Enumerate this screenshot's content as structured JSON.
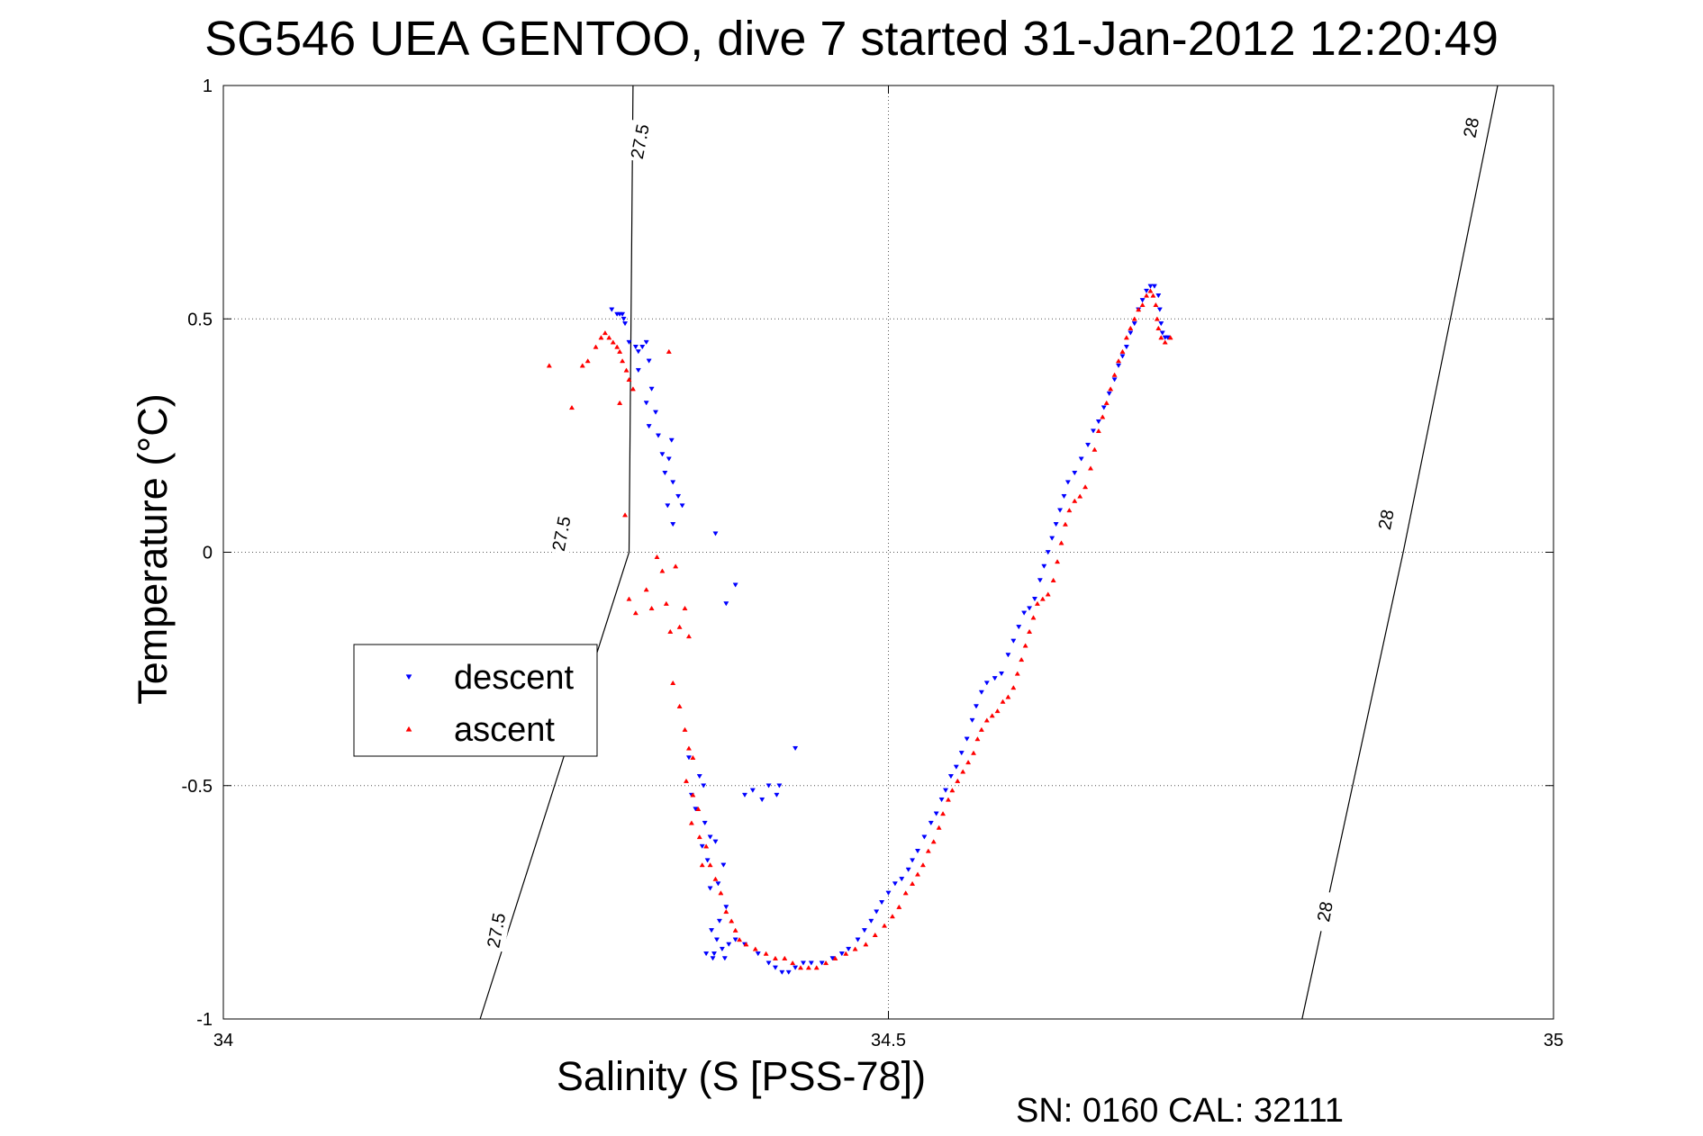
{
  "chart_data": {
    "type": "scatter",
    "title": "SG546 UEA GENTOO, dive 7 started 31-Jan-2012 12:20:49",
    "xlabel": "Salinity (S [PSS-78])",
    "ylabel": "Temperature (°C)",
    "xlim": [
      34,
      35
    ],
    "ylim": [
      -1,
      1
    ],
    "xticks": [
      "34",
      "34.5",
      "35"
    ],
    "yticks": [
      "-1",
      "-0.5",
      "0",
      "0.5",
      "1"
    ],
    "grid": true,
    "legend_position": "middle-left",
    "footer": "SN: 0160  CAL: 32111",
    "density_contours": [
      {
        "label": "27.5",
        "points": [
          [
            34.193,
            -1.0
          ],
          [
            34.305,
            0.0
          ],
          [
            34.308,
            1.0
          ]
        ]
      },
      {
        "label": "28",
        "points": [
          [
            34.811,
            -1.0
          ],
          [
            34.887,
            0.0
          ],
          [
            34.958,
            1.0
          ]
        ]
      }
    ],
    "contour_labels": [
      {
        "text": "27.5",
        "x": 34.205,
        "y": -0.81
      },
      {
        "text": "27.5",
        "x": 34.254,
        "y": 0.04
      },
      {
        "text": "27.5",
        "x": 34.313,
        "y": 0.88
      },
      {
        "text": "28",
        "x": 34.828,
        "y": -0.77
      },
      {
        "text": "28",
        "x": 34.874,
        "y": 0.07
      },
      {
        "text": "28",
        "x": 34.938,
        "y": 0.91
      }
    ],
    "series": [
      {
        "name": "descent",
        "color": "#0000ff",
        "marker": "triangle-down",
        "points": [
          [
            34.292,
            0.52
          ],
          [
            34.296,
            0.51
          ],
          [
            34.298,
            0.51
          ],
          [
            34.3,
            0.51
          ],
          [
            34.301,
            0.5
          ],
          [
            34.302,
            0.49
          ],
          [
            34.305,
            0.45
          ],
          [
            34.31,
            0.44
          ],
          [
            34.312,
            0.43
          ],
          [
            34.315,
            0.44
          ],
          [
            34.318,
            0.45
          ],
          [
            34.32,
            0.41
          ],
          [
            34.312,
            0.39
          ],
          [
            34.322,
            0.35
          ],
          [
            34.318,
            0.32
          ],
          [
            34.325,
            0.3
          ],
          [
            34.32,
            0.27
          ],
          [
            34.327,
            0.25
          ],
          [
            34.33,
            0.21
          ],
          [
            34.335,
            0.2
          ],
          [
            34.337,
            0.24
          ],
          [
            34.332,
            0.17
          ],
          [
            34.338,
            0.15
          ],
          [
            34.342,
            0.12
          ],
          [
            34.345,
            0.1
          ],
          [
            34.334,
            0.1
          ],
          [
            34.338,
            0.06
          ],
          [
            34.37,
            0.04
          ],
          [
            34.385,
            -0.07
          ],
          [
            34.378,
            -0.11
          ],
          [
            34.35,
            -0.44
          ],
          [
            34.358,
            -0.48
          ],
          [
            34.352,
            -0.52
          ],
          [
            34.361,
            -0.5
          ],
          [
            34.355,
            -0.55
          ],
          [
            34.362,
            -0.58
          ],
          [
            34.366,
            -0.61
          ],
          [
            34.36,
            -0.63
          ],
          [
            34.37,
            -0.62
          ],
          [
            34.364,
            -0.66
          ],
          [
            34.376,
            -0.67
          ],
          [
            34.372,
            -0.71
          ],
          [
            34.366,
            -0.72
          ],
          [
            34.378,
            -0.76
          ],
          [
            34.373,
            -0.79
          ],
          [
            34.367,
            -0.81
          ],
          [
            34.371,
            -0.83
          ],
          [
            34.375,
            -0.85
          ],
          [
            34.369,
            -0.86
          ],
          [
            34.363,
            -0.86
          ],
          [
            34.377,
            -0.87
          ],
          [
            34.368,
            -0.87
          ],
          [
            34.392,
            -0.52
          ],
          [
            34.398,
            -0.51
          ],
          [
            34.41,
            -0.5
          ],
          [
            34.405,
            -0.53
          ],
          [
            34.416,
            -0.52
          ],
          [
            34.418,
            -0.5
          ],
          [
            34.43,
            -0.42
          ],
          [
            34.38,
            -0.84
          ],
          [
            34.385,
            -0.83
          ],
          [
            34.392,
            -0.84
          ],
          [
            34.402,
            -0.86
          ],
          [
            34.41,
            -0.88
          ],
          [
            34.415,
            -0.89
          ],
          [
            34.42,
            -0.9
          ],
          [
            34.425,
            -0.9
          ],
          [
            34.43,
            -0.89
          ],
          [
            34.436,
            -0.88
          ],
          [
            34.442,
            -0.88
          ],
          [
            34.45,
            -0.88
          ],
          [
            34.458,
            -0.87
          ],
          [
            34.465,
            -0.86
          ],
          [
            34.47,
            -0.85
          ],
          [
            34.477,
            -0.83
          ],
          [
            34.482,
            -0.81
          ],
          [
            34.487,
            -0.79
          ],
          [
            34.491,
            -0.77
          ],
          [
            34.495,
            -0.75
          ],
          [
            34.5,
            -0.73
          ],
          [
            34.505,
            -0.71
          ],
          [
            34.51,
            -0.7
          ],
          [
            34.515,
            -0.68
          ],
          [
            34.518,
            -0.66
          ],
          [
            34.522,
            -0.64
          ],
          [
            34.527,
            -0.61
          ],
          [
            34.532,
            -0.58
          ],
          [
            34.536,
            -0.56
          ],
          [
            34.54,
            -0.53
          ],
          [
            34.543,
            -0.51
          ],
          [
            34.547,
            -0.48
          ],
          [
            34.551,
            -0.46
          ],
          [
            34.555,
            -0.43
          ],
          [
            34.559,
            -0.4
          ],
          [
            34.563,
            -0.36
          ],
          [
            34.566,
            -0.33
          ],
          [
            34.57,
            -0.3
          ],
          [
            34.574,
            -0.28
          ],
          [
            34.58,
            -0.27
          ],
          [
            34.585,
            -0.26
          ],
          [
            34.59,
            -0.22
          ],
          [
            34.594,
            -0.19
          ],
          [
            34.598,
            -0.16
          ],
          [
            34.602,
            -0.13
          ],
          [
            34.606,
            -0.12
          ],
          [
            34.61,
            -0.1
          ],
          [
            34.614,
            -0.06
          ],
          [
            34.617,
            -0.03
          ],
          [
            34.62,
            0.0
          ],
          [
            34.623,
            0.03
          ],
          [
            34.626,
            0.06
          ],
          [
            34.629,
            0.09
          ],
          [
            34.632,
            0.12
          ],
          [
            34.635,
            0.15
          ],
          [
            34.64,
            0.17
          ],
          [
            34.645,
            0.2
          ],
          [
            34.65,
            0.23
          ],
          [
            34.654,
            0.26
          ],
          [
            34.658,
            0.28
          ],
          [
            34.662,
            0.31
          ],
          [
            34.666,
            0.34
          ],
          [
            34.67,
            0.37
          ],
          [
            34.673,
            0.4
          ],
          [
            34.676,
            0.42
          ],
          [
            34.679,
            0.44
          ],
          [
            34.682,
            0.47
          ],
          [
            34.685,
            0.49
          ],
          [
            34.688,
            0.52
          ],
          [
            34.691,
            0.54
          ],
          [
            34.694,
            0.56
          ],
          [
            34.697,
            0.57
          ],
          [
            34.7,
            0.57
          ],
          [
            34.703,
            0.55
          ],
          [
            34.704,
            0.52
          ],
          [
            34.705,
            0.49
          ],
          [
            34.706,
            0.47
          ],
          [
            34.708,
            0.46
          ],
          [
            34.71,
            0.46
          ]
        ]
      },
      {
        "name": "ascent",
        "color": "#ff0000",
        "marker": "triangle-up",
        "points": [
          [
            34.245,
            0.4
          ],
          [
            34.262,
            0.31
          ],
          [
            34.27,
            0.4
          ],
          [
            34.274,
            0.41
          ],
          [
            34.28,
            0.44
          ],
          [
            34.284,
            0.46
          ],
          [
            34.287,
            0.47
          ],
          [
            34.29,
            0.46
          ],
          [
            34.293,
            0.45
          ],
          [
            34.296,
            0.44
          ],
          [
            34.298,
            0.43
          ],
          [
            34.3,
            0.41
          ],
          [
            34.303,
            0.39
          ],
          [
            34.305,
            0.37
          ],
          [
            34.308,
            0.35
          ],
          [
            34.298,
            0.32
          ],
          [
            34.335,
            0.43
          ],
          [
            34.302,
            0.08
          ],
          [
            34.305,
            -0.1
          ],
          [
            34.31,
            -0.13
          ],
          [
            34.318,
            -0.08
          ],
          [
            34.322,
            -0.12
          ],
          [
            34.326,
            -0.01
          ],
          [
            34.33,
            -0.04
          ],
          [
            34.333,
            -0.11
          ],
          [
            34.336,
            -0.17
          ],
          [
            34.34,
            -0.03
          ],
          [
            34.343,
            -0.16
          ],
          [
            34.347,
            -0.12
          ],
          [
            34.35,
            -0.18
          ],
          [
            34.338,
            -0.28
          ],
          [
            34.343,
            -0.33
          ],
          [
            34.347,
            -0.38
          ],
          [
            34.35,
            -0.42
          ],
          [
            34.353,
            -0.44
          ],
          [
            34.348,
            -0.49
          ],
          [
            34.353,
            -0.52
          ],
          [
            34.357,
            -0.55
          ],
          [
            34.352,
            -0.58
          ],
          [
            34.358,
            -0.61
          ],
          [
            34.363,
            -0.63
          ],
          [
            34.36,
            -0.67
          ],
          [
            34.366,
            -0.67
          ],
          [
            34.37,
            -0.7
          ],
          [
            34.374,
            -0.73
          ],
          [
            34.378,
            -0.77
          ],
          [
            34.382,
            -0.79
          ],
          [
            34.385,
            -0.81
          ],
          [
            34.388,
            -0.83
          ],
          [
            34.393,
            -0.84
          ],
          [
            34.4,
            -0.85
          ],
          [
            34.408,
            -0.86
          ],
          [
            34.415,
            -0.87
          ],
          [
            34.422,
            -0.87
          ],
          [
            34.428,
            -0.88
          ],
          [
            34.434,
            -0.89
          ],
          [
            34.44,
            -0.89
          ],
          [
            34.446,
            -0.89
          ],
          [
            34.453,
            -0.88
          ],
          [
            34.46,
            -0.87
          ],
          [
            34.468,
            -0.86
          ],
          [
            34.475,
            -0.85
          ],
          [
            34.483,
            -0.84
          ],
          [
            34.49,
            -0.82
          ],
          [
            34.497,
            -0.8
          ],
          [
            34.503,
            -0.78
          ],
          [
            34.508,
            -0.76
          ],
          [
            34.513,
            -0.73
          ],
          [
            34.518,
            -0.71
          ],
          [
            34.522,
            -0.69
          ],
          [
            34.526,
            -0.67
          ],
          [
            34.53,
            -0.64
          ],
          [
            34.534,
            -0.62
          ],
          [
            34.538,
            -0.59
          ],
          [
            34.541,
            -0.56
          ],
          [
            34.545,
            -0.53
          ],
          [
            34.548,
            -0.51
          ],
          [
            34.552,
            -0.49
          ],
          [
            34.556,
            -0.47
          ],
          [
            34.56,
            -0.45
          ],
          [
            34.564,
            -0.43
          ],
          [
            34.567,
            -0.4
          ],
          [
            34.57,
            -0.38
          ],
          [
            34.574,
            -0.36
          ],
          [
            34.578,
            -0.35
          ],
          [
            34.582,
            -0.34
          ],
          [
            34.586,
            -0.32
          ],
          [
            34.59,
            -0.31
          ],
          [
            34.594,
            -0.29
          ],
          [
            34.597,
            -0.26
          ],
          [
            34.6,
            -0.23
          ],
          [
            34.603,
            -0.2
          ],
          [
            34.606,
            -0.17
          ],
          [
            34.609,
            -0.14
          ],
          [
            34.612,
            -0.11
          ],
          [
            34.616,
            -0.1
          ],
          [
            34.62,
            -0.09
          ],
          [
            34.624,
            -0.06
          ],
          [
            34.627,
            -0.02
          ],
          [
            34.63,
            0.02
          ],
          [
            34.633,
            0.06
          ],
          [
            34.636,
            0.09
          ],
          [
            34.64,
            0.11
          ],
          [
            34.644,
            0.12
          ],
          [
            34.648,
            0.14
          ],
          [
            34.652,
            0.18
          ],
          [
            34.655,
            0.22
          ],
          [
            34.658,
            0.26
          ],
          [
            34.661,
            0.29
          ],
          [
            34.664,
            0.32
          ],
          [
            34.667,
            0.35
          ],
          [
            34.67,
            0.38
          ],
          [
            34.673,
            0.41
          ],
          [
            34.676,
            0.43
          ],
          [
            34.679,
            0.46
          ],
          [
            34.682,
            0.48
          ],
          [
            34.685,
            0.5
          ],
          [
            34.688,
            0.52
          ],
          [
            34.691,
            0.53
          ],
          [
            34.694,
            0.55
          ],
          [
            34.697,
            0.56
          ],
          [
            34.699,
            0.55
          ],
          [
            34.701,
            0.53
          ],
          [
            34.702,
            0.5
          ],
          [
            34.703,
            0.48
          ],
          [
            34.705,
            0.46
          ],
          [
            34.708,
            0.45
          ],
          [
            34.712,
            0.46
          ]
        ]
      }
    ]
  }
}
